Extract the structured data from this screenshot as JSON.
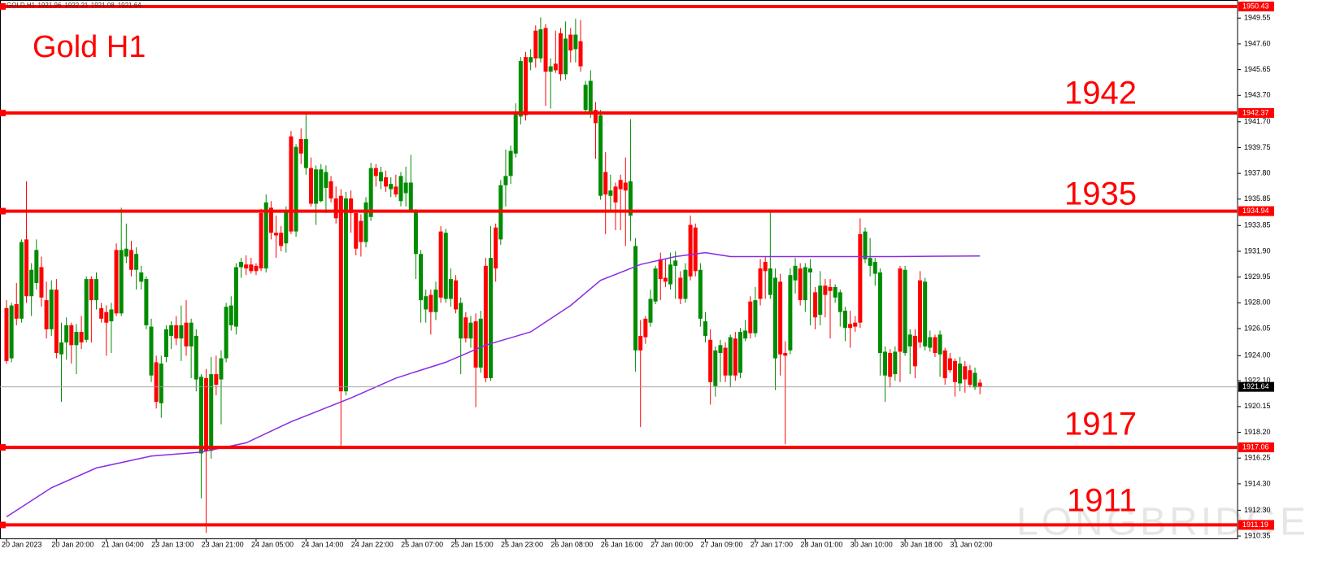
{
  "chart_data": {
    "type": "candlestick",
    "symbol": "GOLD,H1",
    "watermark": "LONGBRIDGE",
    "annotations": [
      "Gold H1",
      "1942",
      "1935",
      "1917",
      "1911"
    ],
    "up_color": "#008c00",
    "down_color": "#ff0000",
    "level_color": "#ff0000",
    "ma_color": "#8a2be2",
    "xlim": [
      -1.3,
      246.6
    ],
    "xticks": [
      {
        "value": 0,
        "label": "20 Jan 2023"
      },
      {
        "value": 10,
        "label": "20 Jan 20:00"
      },
      {
        "value": 20,
        "label": "21 Jan 04:00"
      },
      {
        "value": 30,
        "label": "23 Jan 13:00"
      },
      {
        "value": 40,
        "label": "23 Jan 21:00"
      },
      {
        "value": 50,
        "label": "24 Jan 05:00"
      },
      {
        "value": 60,
        "label": "24 Jan 14:00"
      },
      {
        "value": 70,
        "label": "24 Jan 22:00"
      },
      {
        "value": 80,
        "label": "25 Jan 07:00"
      },
      {
        "value": 90,
        "label": "25 Jan 15:00"
      },
      {
        "value": 100,
        "label": "25 Jan 23:00"
      },
      {
        "value": 110,
        "label": "26 Jan 08:00"
      },
      {
        "value": 120,
        "label": "26 Jan 16:00"
      },
      {
        "value": 130,
        "label": "27 Jan 00:00"
      },
      {
        "value": 140,
        "label": "27 Jan 09:00"
      },
      {
        "value": 150,
        "label": "27 Jan 17:00"
      },
      {
        "value": 160,
        "label": "28 Jan 01:00"
      },
      {
        "value": 170,
        "label": "30 Jan 10:00"
      },
      {
        "value": 180,
        "label": "30 Jan 18:00"
      },
      {
        "value": 190,
        "label": "31 Jan 02:00"
      }
    ],
    "ylim": [
      1910.17,
      1950.92
    ],
    "yticks": [
      1949.55,
      {
        "value": 1947.6,
        "label": "1947.60"
      },
      1945.65,
      {
        "value": 1943.7,
        "label": "1943.70"
      },
      {
        "value": 1941.7,
        "label": "1941.70"
      },
      1939.75,
      {
        "value": 1937.8,
        "label": "1937.80"
      },
      1935.85,
      1933.85,
      {
        "value": 1931.9,
        "label": "1931.90"
      },
      1929.95,
      {
        "value": 1928,
        "label": "1928.00"
      },
      1926.05,
      {
        "value": 1924,
        "label": "1924.00"
      },
      {
        "value": 1922.1,
        "label": "1922.10"
      },
      1920.15,
      {
        "value": 1918.2,
        "label": "1918.20"
      },
      1916.25,
      {
        "value": 1914.3,
        "label": "1914.30"
      },
      {
        "value": 1912.3,
        "label": "1912.30"
      },
      1910.35
    ],
    "levels": [
      1950.43,
      1942.37,
      1934.94,
      1917.06,
      1911.19
    ],
    "open": [
      1927.6,
      1923.8,
      1927.9,
      1926.8,
      1932.8,
      1928.5,
      1929.5,
      1930.7,
      1928.2,
      1926,
      1929,
      1924.1,
      1925,
      1926.3,
      1924.8,
      1925.8,
      1925.2,
      1929.8,
      1928.2,
      1927.6,
      1927.3,
      1926.6,
      1932,
      1927.2,
      1931.5,
      1932,
      1930.5,
      1929.6,
      1926.3,
      1922.5,
      1923.5,
      1920.4,
      1923.9,
      1925.5,
      1926.3,
      1925.3,
      1926.5,
      1924.7,
      1922.2,
      1916.6,
      1922.3,
      1916.8,
      1922.6,
      1922.2,
      1923.8,
      1926.3,
      1926.2,
      1930.7,
      1930.9,
      1930.9,
      1930.8,
      1934.8,
      1930.6,
      1935.2,
      1933.3,
      1933.3,
      1932.5,
      1940.6,
      1933.4,
      1940.4,
      1938.2,
      1938.2,
      1935.5,
      1935.7,
      1936.7,
      1937.2,
      1935.9,
      1936.1,
      1921.3,
      1935.9,
      1934.8,
      1934.2,
      1932.6,
      1934.5,
      1938.2,
      1937.2,
      1937.5,
      1936.6,
      1936.8,
      1935.7,
      1936.3,
      1934.9,
      1931.7,
      1928.2,
      1927.5,
      1928.6,
      1927.3,
      1933.4,
      1928.3,
      1928.3,
      1929.7,
      1925.3,
      1926.9,
      1925.3,
      1926.6,
      1923.1,
      1930.8,
      1922.3,
      1933.7,
      1932.8,
      1936.9,
      1937.6,
      1939.3,
      1942.1,
      1946.6,
      1946.2,
      1948.6,
      1946.5,
      1948.8,
      1945.5,
      1946.1,
      1948.4,
      1945.3,
      1948.3,
      1947.2,
      1947.8,
      1942.6,
      1942.5,
      1942.6,
      1936.1,
      1937.9,
      1936.1,
      1936.8,
      1937.3,
      1937.1,
      1934.6,
      1924.4,
      1925.5,
      1926.8,
      1926.5,
      1928.1,
      1931.3,
      1929.9,
      1929.4,
      1930.8,
      1929.9,
      1928.3,
      1933.9,
      1933.7,
      1926.8,
      1925.5,
      1925.2,
      1921.7,
      1924.2,
      1924.6,
      1922.5,
      1925.3,
      1922.7,
      1925.3,
      1928.1,
      1925.7,
      1930.6,
      1931.1,
      1928.6,
      1923.8,
      1929.6,
      1924.2,
      1924.4,
      1929.7,
      1930.6,
      1928.2,
      1930.3,
      1928.8,
      1927.1,
      1929.3,
      1929.2,
      1928.4,
      1927.3,
      1926.1,
      1926.4,
      1926.5,
      1933.2,
      1931.3,
      1930.8,
      1930.2,
      1924.2,
      1922.5,
      1924.2,
      1922.6,
      1930.6,
      1924.2,
      1924.7,
      1925.5,
      1929.7,
      1924.7,
      1924.6,
      1925.4,
      1924.1,
      1924.4,
      1923.8,
      1923.6,
      1921.9,
      1923.2,
      1922.9,
      1921.6,
      1921.96
    ],
    "high": [
      1928.2,
      1928,
      1929.5,
      1932.8,
      1937.2,
      1931,
      1932.8,
      1931.5,
      1929.6,
      1929.7,
      1929.8,
      1926.5,
      1926.9,
      1926.5,
      1926.4,
      1927,
      1930,
      1930,
      1930.3,
      1928,
      1927.8,
      1928,
      1932.5,
      1935.2,
      1934,
      1932.7,
      1932.2,
      1930.8,
      1930,
      1926.8,
      1924,
      1924,
      1926.3,
      1926.6,
      1927,
      1927.8,
      1928.2,
      1926.8,
      1926,
      1922.6,
      1923,
      1923.9,
      1924,
      1924.4,
      1928,
      1928.5,
      1931,
      1931.4,
      1931.6,
      1931.4,
      1931,
      1935.1,
      1936.2,
      1935.7,
      1934.6,
      1933.8,
      1935.3,
      1941,
      1940,
      1941.2,
      1942.3,
      1939,
      1938.4,
      1938.5,
      1938.4,
      1937.6,
      1936.8,
      1936.6,
      1936.4,
      1936.5,
      1935,
      1934.7,
      1936,
      1938.6,
      1938.5,
      1938.3,
      1938,
      1937.5,
      1937.7,
      1937.9,
      1938.3,
      1939.2,
      1935.1,
      1932,
      1929,
      1929,
      1929.6,
      1933.8,
      1933.6,
      1930.6,
      1930.1,
      1928.4,
      1927.3,
      1927,
      1927.2,
      1927.4,
      1931.4,
      1933.8,
      1934,
      1937.3,
      1939.6,
      1939.9,
      1943.1,
      1946.6,
      1947,
      1947.2,
      1949,
      1949.6,
      1949.1,
      1946.5,
      1948.6,
      1948.8,
      1949.3,
      1948.8,
      1949.5,
      1949.4,
      1944.8,
      1945.6,
      1943.2,
      1942.6,
      1939.4,
      1937.7,
      1937.1,
      1937.7,
      1939,
      1941.9,
      1932.9,
      1926.7,
      1927,
      1929,
      1930.8,
      1931.8,
      1931.3,
      1931.8,
      1931.9,
      1930.4,
      1931,
      1934.6,
      1934,
      1931,
      1927.3,
      1926,
      1924.7,
      1925.2,
      1925,
      1925.6,
      1925.8,
      1926.1,
      1926.7,
      1928.5,
      1929.2,
      1931.3,
      1931.5,
      1934.9,
      1930.6,
      1930.2,
      1925.1,
      1930.6,
      1931.4,
      1931,
      1931,
      1931.3,
      1929.2,
      1930.4,
      1929.8,
      1929.8,
      1929.4,
      1929,
      1927.7,
      1927.4,
      1927,
      1934.4,
      1933.7,
      1932.9,
      1931.4,
      1930.6,
      1924.7,
      1924.5,
      1924.7,
      1930.8,
      1930.8,
      1926,
      1926,
      1930.4,
      1929.9,
      1925.9,
      1925.6,
      1925.9,
      1924.6,
      1924.2,
      1923.8,
      1923.9,
      1923.6,
      1923.3,
      1923.1,
      1922.21
    ],
    "low": [
      1923.4,
      1923.5,
      1926.3,
      1926.5,
      1928,
      1927,
      1929,
      1927.7,
      1925.3,
      1925.5,
      1923.8,
      1920.5,
      1923.7,
      1923.4,
      1922.6,
      1924.5,
      1925,
      1925,
      1927.5,
      1926.5,
      1924,
      1924.2,
      1927,
      1927,
      1931,
      1930,
      1929,
      1929,
      1926,
      1922,
      1920,
      1919.3,
      1923.5,
      1924.5,
      1924.8,
      1923.6,
      1924,
      1922.3,
      1921.3,
      1913.2,
      1910.6,
      1916.2,
      1921,
      1918.8,
      1923.5,
      1925.9,
      1925.6,
      1929.9,
      1930.1,
      1930.2,
      1930.1,
      1930.4,
      1930.3,
      1932.8,
      1931.4,
      1931.9,
      1931.8,
      1933.2,
      1933,
      1938.5,
      1937.7,
      1935.3,
      1933.9,
      1935.6,
      1934.8,
      1935.6,
      1934,
      1917.2,
      1921,
      1933.3,
      1931.6,
      1931.5,
      1932.2,
      1934.2,
      1936.8,
      1936.6,
      1936.4,
      1936,
      1936,
      1935.3,
      1935.3,
      1934.9,
      1929.8,
      1926.5,
      1926.5,
      1925.6,
      1926.7,
      1928,
      1928,
      1927.7,
      1927.2,
      1922.6,
      1925,
      1924.6,
      1920.1,
      1922.7,
      1922,
      1922.1,
      1929.6,
      1932.4,
      1935.3,
      1937,
      1939,
      1941.5,
      1941.8,
      1945.6,
      1945.8,
      1946.2,
      1942.9,
      1942.7,
      1945.4,
      1944.8,
      1944.9,
      1946.2,
      1946.2,
      1945.5,
      1942.3,
      1942,
      1938.9,
      1935.8,
      1933.2,
      1935,
      1933.5,
      1933.5,
      1932.3,
      1932.7,
      1922.8,
      1918.6,
      1924.9,
      1926.2,
      1927.9,
      1928.2,
      1929.2,
      1929,
      1928.3,
      1927.9,
      1928,
      1929.7,
      1930,
      1926.2,
      1925,
      1920.3,
      1920.9,
      1922,
      1922,
      1921.6,
      1922.1,
      1922.3,
      1925.1,
      1925.3,
      1925.4,
      1927.8,
      1928.3,
      1928.3,
      1921.4,
      1922.5,
      1917.3,
      1924.1,
      1928.7,
      1927.8,
      1927.3,
      1926.3,
      1926,
      1926.3,
      1926.9,
      1925.3,
      1928,
      1926.2,
      1925.1,
      1924.6,
      1925.8,
      1926.1,
      1931,
      1930,
      1929.3,
      1922.5,
      1920.5,
      1921.6,
      1922.1,
      1922,
      1924,
      1922.6,
      1922.3,
      1924.6,
      1924.4,
      1924.3,
      1923.9,
      1922.4,
      1921.8,
      1922.7,
      1920.9,
      1921.3,
      1921.2,
      1921.6,
      1921.4,
      1921.08
    ],
    "close": [
      1923.6,
      1927.8,
      1926.8,
      1932.6,
      1928.5,
      1930.5,
      1932,
      1928.4,
      1926,
      1929,
      1924.2,
      1925,
      1926.3,
      1924.8,
      1925.8,
      1925,
      1929.8,
      1928.2,
      1929.8,
      1926.8,
      1926.5,
      1927.5,
      1927.2,
      1932,
      1932.1,
      1930.5,
      1931.7,
      1930.3,
      1929.8,
      1926.2,
      1920.5,
      1923.4,
      1926,
      1926.3,
      1925.3,
      1926.3,
      1924.7,
      1926.5,
      1925.5,
      1922.4,
      1916.8,
      1922.6,
      1921.8,
      1923.8,
      1927.7,
      1927.8,
      1930.7,
      1931.1,
      1930.6,
      1930.4,
      1930.4,
      1930.6,
      1935.6,
      1933.3,
      1933.1,
      1932.3,
      1935,
      1933.4,
      1939.8,
      1939.3,
      1940.4,
      1935.5,
      1938.1,
      1938.1,
      1937.9,
      1935.9,
      1934.4,
      1921.3,
      1935.9,
      1934.8,
      1932.1,
      1932.6,
      1935.6,
      1938.2,
      1937.6,
      1937.9,
      1936.8,
      1937,
      1936.2,
      1937.6,
      1937.1,
      1937.1,
      1934.9,
      1931.7,
      1928.5,
      1927.3,
      1929,
      1928.4,
      1933.3,
      1929.8,
      1927.5,
      1928,
      1925.3,
      1926.5,
      1923.1,
      1926.8,
      1922.3,
      1931.4,
      1930.6,
      1936.9,
      1937.6,
      1939.5,
      1942.5,
      1946.3,
      1942.2,
      1946.6,
      1946.5,
      1948.7,
      1945.5,
      1945.9,
      1945.6,
      1945.3,
      1948,
      1947.1,
      1948.3,
      1945.9,
      1944.5,
      1944.8,
      1941.6,
      1942.2,
      1936.2,
      1936.5,
      1935.6,
      1936.6,
      1936.5,
      1937.2,
      1932.3,
      1924.4,
      1925.4,
      1928.3,
      1930.6,
      1929.8,
      1929.6,
      1930.9,
      1931.2,
      1928.3,
      1930.5,
      1930,
      1930.4,
      1930.5,
      1926.6,
      1922,
      1924.4,
      1924.8,
      1922.5,
      1925.4,
      1922.5,
      1925.8,
      1925.9,
      1925.7,
      1928.2,
      1928.3,
      1930.4,
      1930.6,
      1929.9,
      1924.1,
      1924,
      1930.1,
      1930.8,
      1928.2,
      1930.7,
      1930.6,
      1926.9,
      1929.3,
      1928.6,
      1928.9,
      1929.2,
      1928.8,
      1927.4,
      1926.1,
      1926.2,
      1926.5,
      1933.4,
      1931.4,
      1931.1,
      1930.3,
      1924.3,
      1922.4,
      1924.3,
      1924.3,
      1930.5,
      1925.6,
      1923.2,
      1925,
      1929.6,
      1925.4,
      1924.2,
      1925.6,
      1922.3,
      1922.9,
      1922,
      1923.4,
      1922.2,
      1921.8,
      1922.7,
      1921.64
    ],
    "moving_average": {
      "x": [
        0,
        9,
        18,
        29,
        39,
        48,
        57,
        69,
        78,
        88,
        96,
        105,
        113,
        119,
        127,
        134,
        140,
        145,
        162,
        178,
        195
      ],
      "values": [
        1911.8,
        1914,
        1915.5,
        1916.4,
        1916.7,
        1917.4,
        1919,
        1920.8,
        1922.3,
        1923.5,
        1924.8,
        1925.8,
        1927.8,
        1929.7,
        1930.9,
        1931.5,
        1931.8,
        1931.5,
        1931.5,
        1931.5,
        1931.55
      ]
    }
  }
}
